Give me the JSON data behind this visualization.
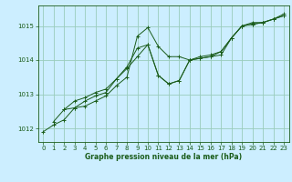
{
  "title": "Graphe pression niveau de la mer (hPa)",
  "background_color": "#cceeff",
  "grid_color": "#99ccbb",
  "line_color": "#1a5c1a",
  "xlim": [
    -0.5,
    23.5
  ],
  "ylim": [
    1011.6,
    1015.6
  ],
  "yticks": [
    1012,
    1013,
    1014,
    1015
  ],
  "xticks": [
    0,
    1,
    2,
    3,
    4,
    5,
    6,
    7,
    8,
    9,
    10,
    11,
    12,
    13,
    14,
    15,
    16,
    17,
    18,
    19,
    20,
    21,
    22,
    23
  ],
  "series": [
    [
      1011.9,
      1012.1,
      1012.25,
      1012.6,
      1012.65,
      1012.8,
      1012.95,
      1013.25,
      1013.5,
      1014.7,
      1014.95,
      1014.4,
      1014.1,
      1014.1,
      1014.0,
      1014.05,
      1014.1,
      1014.25,
      1014.65,
      1015.0,
      1015.05,
      1015.1,
      1015.2,
      1015.3
    ],
    [
      null,
      1012.2,
      1012.55,
      1012.6,
      1012.8,
      1012.95,
      1013.05,
      1013.45,
      1013.8,
      1014.35,
      1014.45,
      1013.55,
      1013.3,
      1013.4,
      1014.0,
      1014.05,
      1014.1,
      1014.15,
      1014.65,
      1015.0,
      1015.05,
      1015.1,
      1015.2,
      1015.3
    ],
    [
      null,
      null,
      1012.55,
      1012.8,
      1012.9,
      1013.05,
      1013.15,
      1013.45,
      1013.75,
      1014.1,
      1014.45,
      1013.55,
      1013.3,
      1013.4,
      1014.0,
      1014.1,
      1014.15,
      1014.25,
      1014.65,
      1015.0,
      1015.1,
      1015.1,
      1015.2,
      1015.35
    ]
  ]
}
